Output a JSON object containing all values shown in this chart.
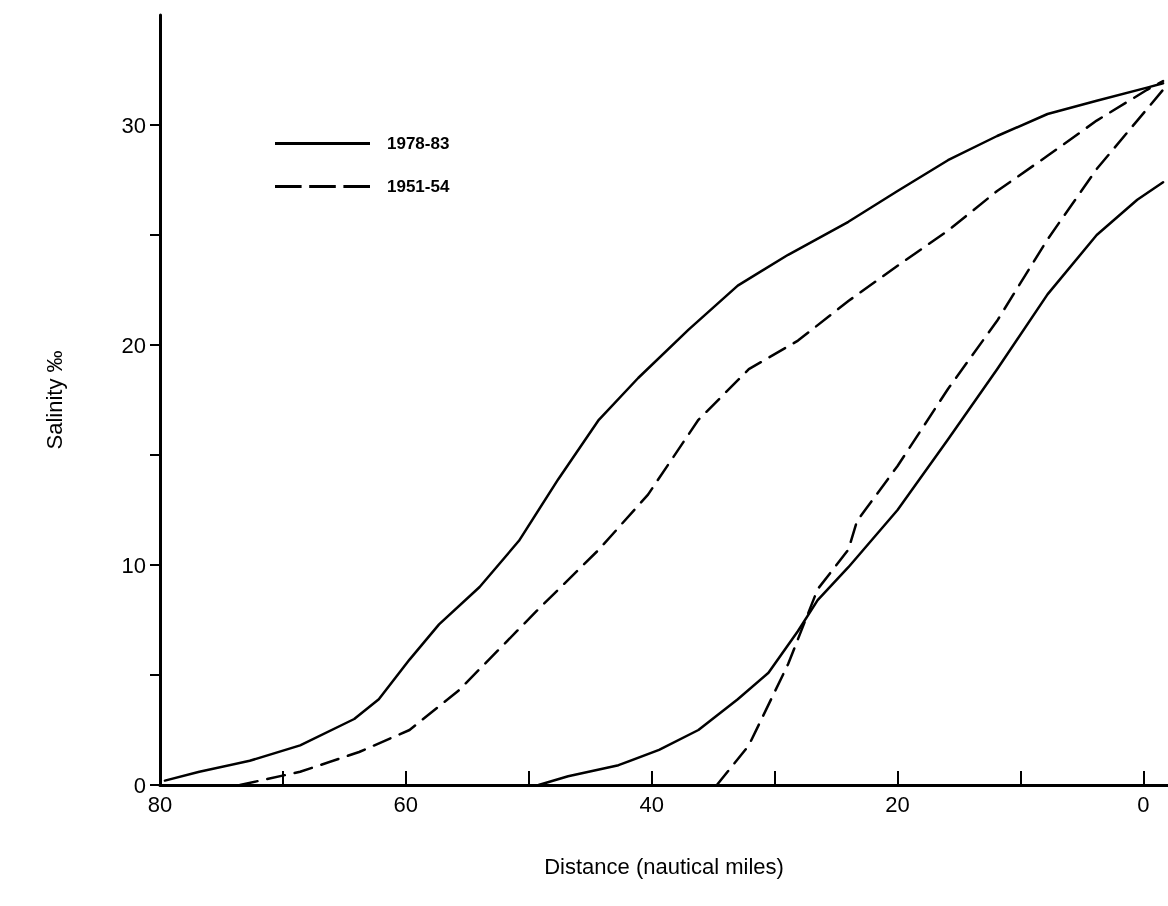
{
  "chart_data": {
    "type": "line",
    "xlabel": "Distance (nautical miles)",
    "ylabel": "Salinity ‰",
    "xlim": [
      80,
      -2
    ],
    "xticks": [
      80,
      {
        "value": 70,
        "label": null
      },
      60,
      {
        "value": 50,
        "label": null
      },
      40,
      {
        "value": 30,
        "label": null
      },
      20,
      {
        "value": 10,
        "label": null
      },
      0
    ],
    "ylim": [
      0,
      35
    ],
    "yticks": [
      0,
      {
        "value": 5,
        "label": null
      },
      10,
      {
        "value": 15,
        "label": null
      },
      20,
      {
        "value": 25,
        "label": null
      },
      30
    ],
    "grid": false,
    "legend": "top left",
    "marker": "none",
    "series": [
      {
        "name": "1978-83",
        "color": "#000000",
        "line_style": "solid",
        "x": [
          79.6,
          76.8,
          72.7,
          68.6,
          64.2,
          62.2,
          59.7,
          57.3,
          54.0,
          50.8,
          47.6,
          44.3,
          41.1,
          37.0,
          33.0,
          28.9,
          24.0,
          20.0,
          15.9,
          11.9,
          7.8,
          3.8,
          -0.3,
          -1.6
        ],
        "values": [
          0.2,
          0.6,
          1.1,
          1.8,
          3.0,
          3.9,
          5.7,
          7.3,
          9.0,
          11.1,
          13.9,
          16.6,
          18.5,
          20.7,
          22.7,
          24.1,
          25.6,
          27.0,
          28.4,
          29.5,
          30.5,
          31.1,
          31.7,
          31.9
        ]
      },
      {
        "name": "1951-54",
        "color": "#000000",
        "line_style": "dashed",
        "x": [
          73.5,
          68.6,
          63.8,
          59.7,
          55.7,
          49.2,
          44.3,
          40.3,
          36.2,
          32.1,
          28.1,
          24.0,
          20.0,
          15.9,
          11.9,
          7.8,
          3.8,
          -0.3,
          -1.6
        ],
        "values": [
          0,
          0.6,
          1.5,
          2.5,
          4.3,
          8.0,
          10.7,
          13.2,
          16.6,
          18.9,
          20.2,
          22.0,
          23.6,
          25.2,
          27.0,
          28.6,
          30.2,
          31.6,
          32.0
        ]
      },
      {
        "color": "#000000",
        "line_style": "solid",
        "x": [
          49.2,
          46.8,
          42.7,
          39.4,
          36.2,
          33.0,
          30.5,
          28.1,
          26.5,
          24.0,
          20.0,
          15.9,
          11.9,
          7.8,
          3.8,
          0.5,
          -1.6
        ],
        "values": [
          0,
          0.4,
          0.9,
          1.6,
          2.5,
          3.9,
          5.1,
          7.0,
          8.4,
          9.9,
          12.5,
          15.7,
          18.9,
          22.3,
          25.0,
          26.6,
          27.4
        ]
      },
      {
        "color": "#000000",
        "line_style": "dashed",
        "x": [
          34.7,
          32.1,
          28.9,
          26.5,
          24.0,
          23.3,
          20.0,
          15.9,
          11.9,
          7.8,
          3.8,
          0.5,
          -1.6
        ],
        "values": [
          0,
          1.8,
          5.5,
          8.9,
          10.7,
          12.0,
          14.5,
          18.0,
          21.1,
          24.8,
          28.0,
          30.2,
          31.6
        ]
      }
    ]
  }
}
